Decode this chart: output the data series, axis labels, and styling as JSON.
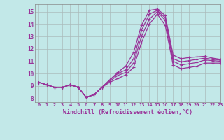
{
  "xlabel": "Windchill (Refroidissement éolien,°C)",
  "x_ticks": [
    0,
    1,
    2,
    3,
    4,
    5,
    6,
    7,
    8,
    9,
    10,
    11,
    12,
    13,
    14,
    15,
    16,
    17,
    18,
    19,
    20,
    21,
    22,
    23
  ],
  "ylim": [
    7.7,
    15.6
  ],
  "xlim": [
    -0.5,
    23
  ],
  "yticks": [
    8,
    9,
    10,
    11,
    12,
    13,
    14,
    15
  ],
  "background_color": "#c2e8e8",
  "grid_color": "#aabbbb",
  "line_color": "#993399",
  "series": [
    [
      9.3,
      9.1,
      8.9,
      8.9,
      9.1,
      8.9,
      8.1,
      8.3,
      8.9,
      9.5,
      10.1,
      10.6,
      11.7,
      13.9,
      15.1,
      15.2,
      14.7,
      11.5,
      11.2,
      11.3,
      11.35,
      11.4,
      11.25,
      11.15
    ],
    [
      9.3,
      9.1,
      8.9,
      8.9,
      9.1,
      8.9,
      8.1,
      8.3,
      8.9,
      9.5,
      10.0,
      10.3,
      11.2,
      13.5,
      14.8,
      15.1,
      14.5,
      11.2,
      10.95,
      11.05,
      11.15,
      11.25,
      11.15,
      11.1
    ],
    [
      9.3,
      9.1,
      8.9,
      8.9,
      9.1,
      8.9,
      8.1,
      8.3,
      8.9,
      9.4,
      9.85,
      10.1,
      10.85,
      13.0,
      14.4,
      15.0,
      14.3,
      11.0,
      10.7,
      10.8,
      10.9,
      11.1,
      11.05,
      11.0
    ],
    [
      9.3,
      9.1,
      8.9,
      8.9,
      9.1,
      8.9,
      8.1,
      8.3,
      8.9,
      9.3,
      9.6,
      9.9,
      10.5,
      12.5,
      14.0,
      14.8,
      13.9,
      10.7,
      10.4,
      10.5,
      10.6,
      10.85,
      10.85,
      10.85
    ]
  ]
}
